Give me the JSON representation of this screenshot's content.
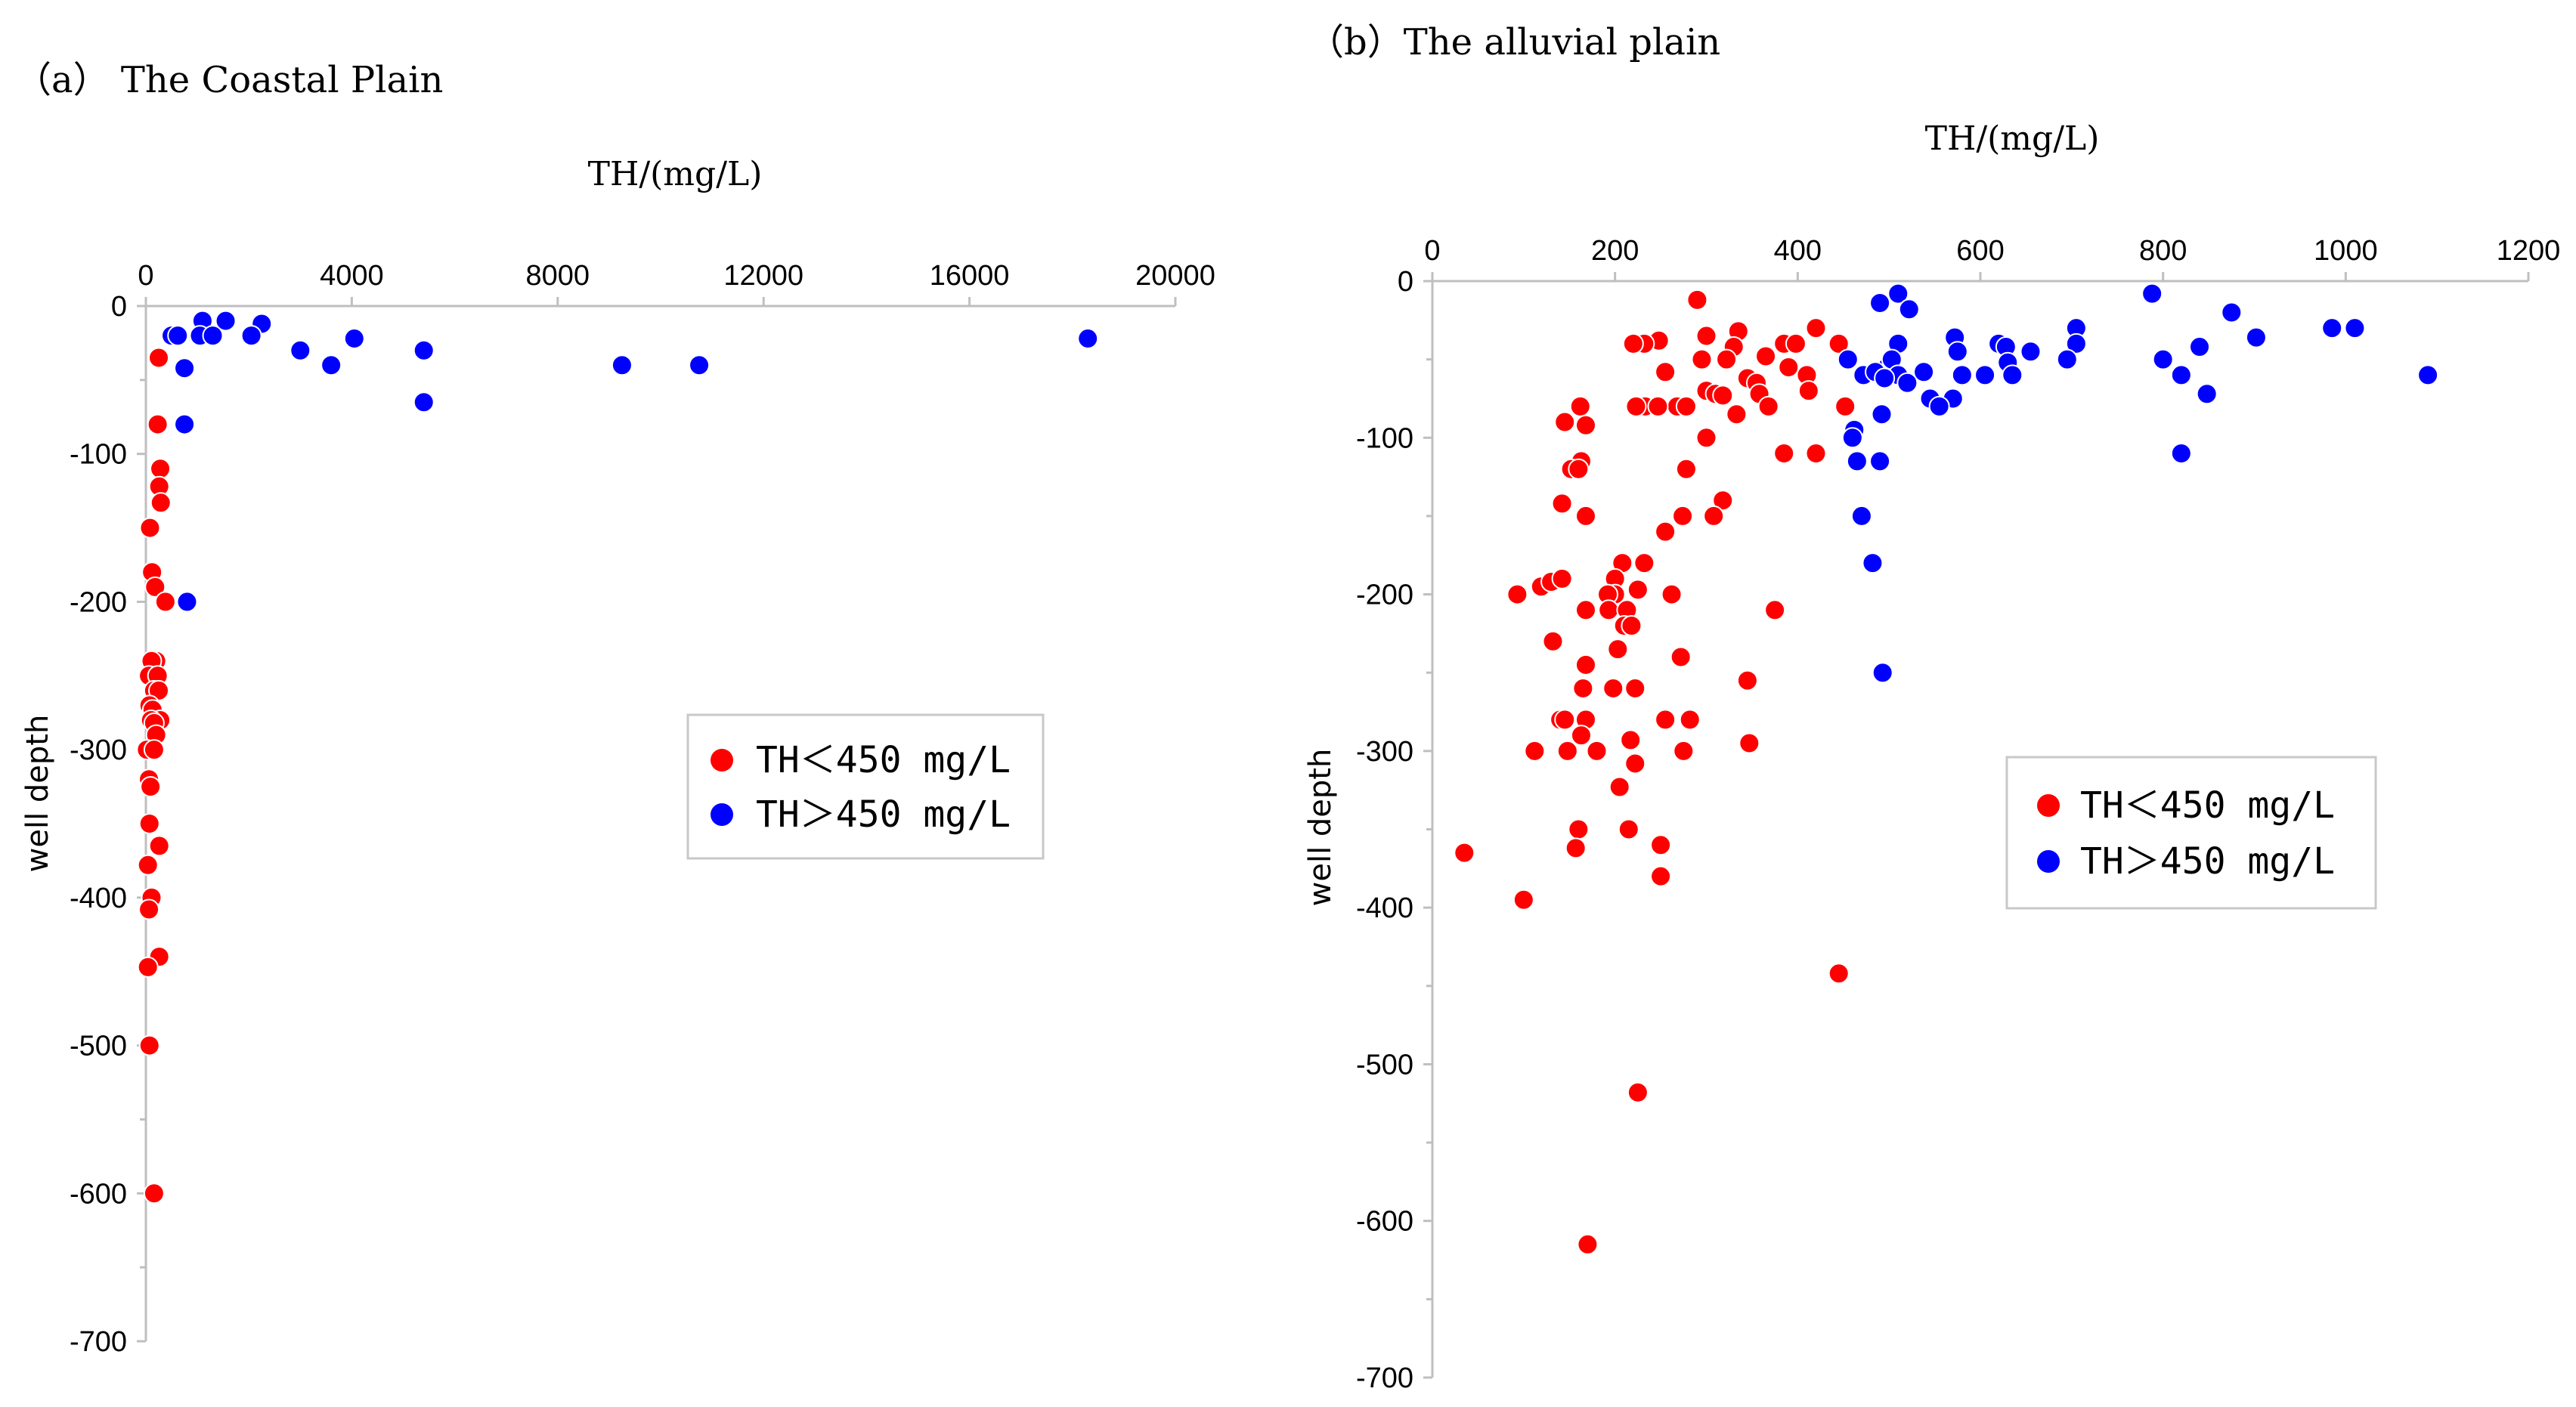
{
  "chart_data": [
    {
      "id": "a",
      "type": "scatter",
      "title": "（a）  The Coastal Plain",
      "xlabel": "TH/(mg/L)",
      "ylabel": "well depth",
      "xlim": [
        0,
        20000
      ],
      "ylim": [
        -700,
        0
      ],
      "xticks": [
        0,
        4000,
        8000,
        12000,
        16000,
        20000
      ],
      "yticks": [
        0,
        -100,
        -200,
        -300,
        -400,
        -500,
        -600,
        -700
      ],
      "legend_position": "center",
      "series": [
        {
          "name": "TH＜450 mg/L",
          "color": "#ff0000",
          "points": [
            [
              250,
              -35
            ],
            [
              230,
              -80
            ],
            [
              280,
              -110
            ],
            [
              260,
              -122
            ],
            [
              290,
              -133
            ],
            [
              80,
              -150
            ],
            [
              120,
              -180
            ],
            [
              180,
              -190
            ],
            [
              380,
              -200
            ],
            [
              200,
              -240
            ],
            [
              110,
              -240
            ],
            [
              60,
              -250
            ],
            [
              230,
              -250
            ],
            [
              160,
              -260
            ],
            [
              250,
              -260
            ],
            [
              70,
              -270
            ],
            [
              130,
              -273
            ],
            [
              280,
              -280
            ],
            [
              100,
              -280
            ],
            [
              160,
              -282
            ],
            [
              200,
              -290
            ],
            [
              20,
              -300
            ],
            [
              160,
              -300
            ],
            [
              60,
              -320
            ],
            [
              90,
              -325
            ],
            [
              70,
              -350
            ],
            [
              260,
              -365
            ],
            [
              40,
              -378
            ],
            [
              110,
              -400
            ],
            [
              60,
              -408
            ],
            [
              260,
              -440
            ],
            [
              40,
              -447
            ],
            [
              70,
              -500
            ],
            [
              160,
              -600
            ]
          ]
        },
        {
          "name": "TH＞450 mg/L",
          "color": "#0000ff",
          "points": [
            [
              500,
              -20
            ],
            [
              620,
              -20
            ],
            [
              1100,
              -10
            ],
            [
              1550,
              -10
            ],
            [
              2250,
              -12
            ],
            [
              1050,
              -20
            ],
            [
              1300,
              -20
            ],
            [
              2050,
              -20
            ],
            [
              4050,
              -22
            ],
            [
              18300,
              -22
            ],
            [
              3000,
              -30
            ],
            [
              5400,
              -30
            ],
            [
              3600,
              -40
            ],
            [
              9250,
              -40
            ],
            [
              10750,
              -40
            ],
            [
              750,
              -42
            ],
            [
              5400,
              -65
            ],
            [
              750,
              -80
            ],
            [
              800,
              -200
            ]
          ]
        }
      ]
    },
    {
      "id": "b",
      "type": "scatter",
      "title": "（b）The alluvial plain",
      "xlabel": "TH/(mg/L)",
      "ylabel": "well depth",
      "xlim": [
        0,
        1200
      ],
      "ylim": [
        -700,
        0
      ],
      "xticks": [
        0,
        200,
        400,
        600,
        800,
        1000,
        1200
      ],
      "yticks": [
        0,
        -100,
        -200,
        -300,
        -400,
        -500,
        -600,
        -700
      ],
      "legend_position": "center",
      "series": [
        {
          "name": "TH＜450 mg/L",
          "color": "#ff0000",
          "points": [
            [
              290,
              -12
            ],
            [
              300,
              -35
            ],
            [
              335,
              -32
            ],
            [
              420,
              -30
            ],
            [
              445,
              -40
            ],
            [
              248,
              -38
            ],
            [
              232,
              -40
            ],
            [
              220,
              -40
            ],
            [
              385,
              -40
            ],
            [
              398,
              -40
            ],
            [
              330,
              -42
            ],
            [
              322,
              -50
            ],
            [
              295,
              -50
            ],
            [
              365,
              -48
            ],
            [
              390,
              -55
            ],
            [
              410,
              -60
            ],
            [
              345,
              -62
            ],
            [
              355,
              -65
            ],
            [
              300,
              -70
            ],
            [
              310,
              -72
            ],
            [
              318,
              -73
            ],
            [
              358,
              -72
            ],
            [
              412,
              -70
            ],
            [
              255,
              -58
            ],
            [
              268,
              -80
            ],
            [
              278,
              -80
            ],
            [
              233,
              -80
            ],
            [
              223,
              -80
            ],
            [
              247,
              -80
            ],
            [
              368,
              -80
            ],
            [
              452,
              -80
            ],
            [
              333,
              -85
            ],
            [
              162,
              -80
            ],
            [
              145,
              -90
            ],
            [
              168,
              -92
            ],
            [
              300,
              -100
            ],
            [
              385,
              -110
            ],
            [
              420,
              -110
            ],
            [
              163,
              -115
            ],
            [
              152,
              -120
            ],
            [
              160,
              -120
            ],
            [
              278,
              -120
            ],
            [
              318,
              -140
            ],
            [
              142,
              -142
            ],
            [
              168,
              -150
            ],
            [
              308,
              -150
            ],
            [
              274,
              -150
            ],
            [
              255,
              -160
            ],
            [
              208,
              -180
            ],
            [
              232,
              -180
            ],
            [
              119,
              -195
            ],
            [
              130,
              -192
            ],
            [
              142,
              -190
            ],
            [
              200,
              -190
            ],
            [
              93,
              -200
            ],
            [
              200,
              -200
            ],
            [
              225,
              -197
            ],
            [
              192,
              -200
            ],
            [
              193,
              -210
            ],
            [
              213,
              -210
            ],
            [
              262,
              -200
            ],
            [
              168,
              -210
            ],
            [
              210,
              -220
            ],
            [
              375,
              -210
            ],
            [
              132,
              -230
            ],
            [
              218,
              -220
            ],
            [
              203,
              -235
            ],
            [
              168,
              -245
            ],
            [
              272,
              -240
            ],
            [
              345,
              -255
            ],
            [
              165,
              -260
            ],
            [
              198,
              -260
            ],
            [
              222,
              -260
            ],
            [
              140,
              -280
            ],
            [
              145,
              -280
            ],
            [
              168,
              -280
            ],
            [
              255,
              -280
            ],
            [
              282,
              -280
            ],
            [
              163,
              -290
            ],
            [
              217,
              -293
            ],
            [
              112,
              -300
            ],
            [
              148,
              -300
            ],
            [
              180,
              -300
            ],
            [
              275,
              -300
            ],
            [
              347,
              -295
            ],
            [
              222,
              -308
            ],
            [
              205,
              -323
            ],
            [
              35,
              -365
            ],
            [
              160,
              -350
            ],
            [
              215,
              -350
            ],
            [
              157,
              -362
            ],
            [
              250,
              -360
            ],
            [
              250,
              -380
            ],
            [
              100,
              -395
            ],
            [
              445,
              -442
            ],
            [
              225,
              -518
            ],
            [
              170,
              -615
            ]
          ]
        },
        {
          "name": "TH＞450 mg/L",
          "color": "#0000ff",
          "points": [
            [
              510,
              -8
            ],
            [
              788,
              -8
            ],
            [
              490,
              -14
            ],
            [
              522,
              -18
            ],
            [
              875,
              -20
            ],
            [
              510,
              -40
            ],
            [
              705,
              -30
            ],
            [
              985,
              -30
            ],
            [
              1010,
              -30
            ],
            [
              572,
              -36
            ],
            [
              655,
              -45
            ],
            [
              902,
              -36
            ],
            [
              840,
              -42
            ],
            [
              705,
              -40
            ],
            [
              620,
              -40
            ],
            [
              628,
              -42
            ],
            [
              800,
              -50
            ],
            [
              455,
              -50
            ],
            [
              498,
              -55
            ],
            [
              503,
              -50
            ],
            [
              695,
              -50
            ],
            [
              575,
              -45
            ],
            [
              630,
              -52
            ],
            [
              472,
              -60
            ],
            [
              485,
              -58
            ],
            [
              510,
              -60
            ],
            [
              538,
              -58
            ],
            [
              580,
              -60
            ],
            [
              635,
              -60
            ],
            [
              605,
              -60
            ],
            [
              820,
              -60
            ],
            [
              1090,
              -60
            ],
            [
              495,
              -62
            ],
            [
              520,
              -65
            ],
            [
              848,
              -72
            ],
            [
              545,
              -75
            ],
            [
              570,
              -75
            ],
            [
              555,
              -80
            ],
            [
              492,
              -85
            ],
            [
              462,
              -95
            ],
            [
              460,
              -100
            ],
            [
              465,
              -115
            ],
            [
              490,
              -115
            ],
            [
              820,
              -110
            ],
            [
              470,
              -150
            ],
            [
              482,
              -180
            ],
            [
              493,
              -250
            ]
          ]
        }
      ]
    }
  ]
}
